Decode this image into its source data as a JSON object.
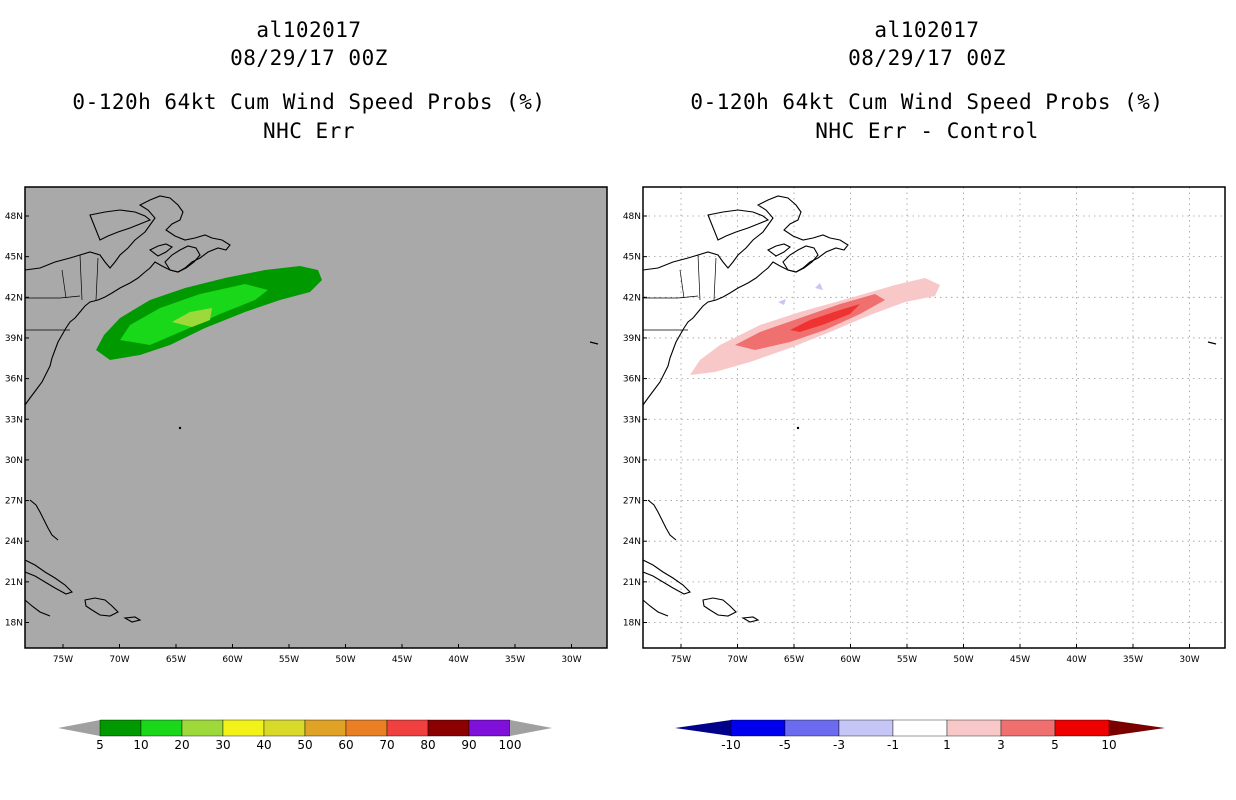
{
  "panels": [
    {
      "storm_id": "al102017",
      "datetime": "08/29/17 00Z",
      "product": "0-120h 64kt Cum Wind Speed Probs (%)",
      "subtitle": "NHC Err",
      "background": "#a9a9a9"
    },
    {
      "storm_id": "al102017",
      "datetime": "08/29/17 00Z",
      "product": "0-120h 64kt Cum Wind Speed Probs (%)",
      "subtitle": "NHC Err - Control",
      "background": "#ffffff"
    }
  ],
  "lat_labels": [
    "48N",
    "45N",
    "42N",
    "39N",
    "36N",
    "33N",
    "30N",
    "27N",
    "24N",
    "21N",
    "18N"
  ],
  "lon_labels": [
    "75W",
    "70W",
    "65W",
    "60W",
    "55W",
    "50W",
    "45W",
    "40W",
    "35W",
    "30W"
  ],
  "colorbar_prob": {
    "colors": [
      "#009a00",
      "#19d719",
      "#9ed93a",
      "#f2f21a",
      "#d9d92a",
      "#e0a326",
      "#ea7f24",
      "#f04040",
      "#8b0000",
      "#7f10d9"
    ],
    "labels": [
      "5",
      "10",
      "20",
      "30",
      "40",
      "50",
      "60",
      "70",
      "80",
      "90",
      "100"
    ],
    "end_color": "#a0a0a0"
  },
  "colorbar_diff": {
    "colors": [
      "#0000ef",
      "#6b6bf0",
      "#c6c6f6",
      "#ffffff",
      "#f8c8c8",
      "#f07070",
      "#ee0000"
    ],
    "labels": [
      "-10",
      "-5",
      "-3",
      "-1",
      "1",
      "3",
      "5",
      "10"
    ],
    "low_color": "#00008b",
    "high_color": "#7a0000"
  }
}
